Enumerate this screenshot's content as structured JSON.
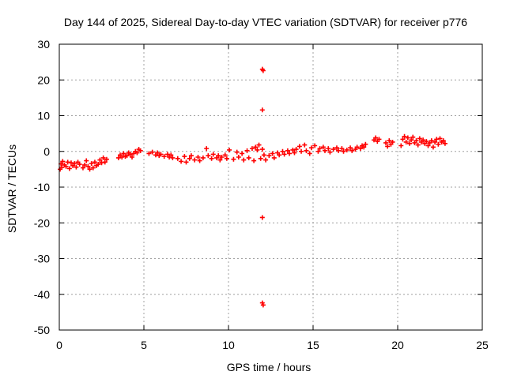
{
  "chart_data": {
    "type": "scatter",
    "title": "Day 144 of 2025, Sidereal Day-to-day VTEC variation (SDTVAR) for receiver p776",
    "xlabel": "GPS time / hours",
    "ylabel": "SDTVAR / TECUs",
    "xlim": [
      0,
      25
    ],
    "ylim": [
      -50,
      30
    ],
    "xticks": [
      0,
      5,
      10,
      15,
      20,
      25
    ],
    "yticks": [
      -50,
      -40,
      -30,
      -20,
      -10,
      0,
      10,
      20,
      30
    ],
    "grid": true,
    "marker": "+",
    "colors": {
      "series": "#ff0000",
      "grid": "#a0a0a0",
      "axes": "#000000"
    },
    "series": [
      {
        "name": "SDTVAR",
        "points": [
          [
            0.05,
            -5.0
          ],
          [
            0.1,
            -3.5
          ],
          [
            0.15,
            -4.5
          ],
          [
            0.2,
            -2.8
          ],
          [
            0.3,
            -3.8
          ],
          [
            0.4,
            -4.2
          ],
          [
            0.5,
            -3.0
          ],
          [
            0.6,
            -4.8
          ],
          [
            0.7,
            -3.2
          ],
          [
            0.8,
            -4.0
          ],
          [
            0.9,
            -3.4
          ],
          [
            1.0,
            -4.4
          ],
          [
            1.1,
            -3.0
          ],
          [
            1.2,
            -3.6
          ],
          [
            1.4,
            -4.6
          ],
          [
            1.5,
            -3.8
          ],
          [
            1.6,
            -2.6
          ],
          [
            1.7,
            -4.2
          ],
          [
            1.8,
            -5.0
          ],
          [
            1.9,
            -3.4
          ],
          [
            2.0,
            -4.6
          ],
          [
            2.1,
            -3.0
          ],
          [
            2.2,
            -4.0
          ],
          [
            2.3,
            -3.6
          ],
          [
            2.4,
            -2.4
          ],
          [
            2.5,
            -3.2
          ],
          [
            2.6,
            -1.8
          ],
          [
            2.7,
            -3.0
          ],
          [
            2.8,
            -2.2
          ],
          [
            3.5,
            -1.8
          ],
          [
            3.6,
            -1.0
          ],
          [
            3.7,
            -1.6
          ],
          [
            3.8,
            -0.6
          ],
          [
            3.9,
            -1.4
          ],
          [
            4.0,
            -1.2
          ],
          [
            4.1,
            -0.4
          ],
          [
            4.2,
            -0.8
          ],
          [
            4.3,
            -1.6
          ],
          [
            4.4,
            -0.6
          ],
          [
            4.5,
            0.0
          ],
          [
            4.6,
            -0.4
          ],
          [
            4.7,
            0.6
          ],
          [
            4.8,
            0.2
          ],
          [
            5.3,
            -0.6
          ],
          [
            5.5,
            -0.2
          ],
          [
            5.7,
            -1.0
          ],
          [
            5.8,
            -0.4
          ],
          [
            5.9,
            -1.2
          ],
          [
            6.0,
            -0.8
          ],
          [
            6.2,
            -1.4
          ],
          [
            6.4,
            -0.8
          ],
          [
            6.5,
            -1.6
          ],
          [
            6.6,
            -1.0
          ],
          [
            6.7,
            -1.8
          ],
          [
            7.0,
            -2.0
          ],
          [
            7.2,
            -2.8
          ],
          [
            7.4,
            -1.4
          ],
          [
            7.5,
            -3.0
          ],
          [
            7.7,
            -2.0
          ],
          [
            7.8,
            -1.2
          ],
          [
            8.0,
            -2.4
          ],
          [
            8.2,
            -1.6
          ],
          [
            8.3,
            -2.6
          ],
          [
            8.5,
            -1.8
          ],
          [
            8.7,
            0.8
          ],
          [
            8.8,
            -1.2
          ],
          [
            9.0,
            -2.0
          ],
          [
            9.1,
            -0.8
          ],
          [
            9.3,
            -1.8
          ],
          [
            9.4,
            -1.2
          ],
          [
            9.5,
            -2.4
          ],
          [
            9.6,
            -1.6
          ],
          [
            9.8,
            -1.0
          ],
          [
            9.9,
            -2.0
          ],
          [
            10.05,
            0.4
          ],
          [
            10.3,
            -2.2
          ],
          [
            10.5,
            -0.2
          ],
          [
            10.6,
            -1.6
          ],
          [
            10.8,
            -0.6
          ],
          [
            10.9,
            -2.4
          ],
          [
            11.1,
            0.2
          ],
          [
            11.2,
            -1.8
          ],
          [
            11.4,
            0.8
          ],
          [
            11.5,
            -2.6
          ],
          [
            11.6,
            1.2
          ],
          [
            11.7,
            0.4
          ],
          [
            11.8,
            1.8
          ],
          [
            11.9,
            -2.0
          ],
          [
            12.0,
            0.6
          ],
          [
            12.1,
            -1.0
          ],
          [
            12.2,
            -2.4
          ],
          [
            12.4,
            -1.2
          ],
          [
            12.6,
            -0.6
          ],
          [
            12.7,
            -1.8
          ],
          [
            12.9,
            -0.4
          ],
          [
            13.0,
            -1.0
          ],
          [
            13.2,
            0.0
          ],
          [
            13.3,
            -0.8
          ],
          [
            13.5,
            0.2
          ],
          [
            13.6,
            -0.6
          ],
          [
            13.8,
            0.4
          ],
          [
            13.9,
            -0.4
          ],
          [
            14.0,
            0.6
          ],
          [
            14.2,
            1.4
          ],
          [
            14.3,
            0.0
          ],
          [
            14.5,
            1.8
          ],
          [
            14.6,
            0.2
          ],
          [
            14.8,
            -0.6
          ],
          [
            14.9,
            1.0
          ],
          [
            15.1,
            1.6
          ],
          [
            15.3,
            0.0
          ],
          [
            15.4,
            0.8
          ],
          [
            15.6,
            1.2
          ],
          [
            15.7,
            0.2
          ],
          [
            15.9,
            0.8
          ],
          [
            16.0,
            -0.2
          ],
          [
            16.2,
            0.6
          ],
          [
            16.4,
            1.0
          ],
          [
            16.5,
            0.2
          ],
          [
            16.7,
            0.8
          ],
          [
            16.8,
            0.0
          ],
          [
            17.0,
            0.4
          ],
          [
            17.2,
            1.0
          ],
          [
            17.3,
            0.2
          ],
          [
            17.5,
            0.6
          ],
          [
            17.6,
            1.2
          ],
          [
            17.8,
            0.8
          ],
          [
            17.9,
            1.6
          ],
          [
            18.0,
            1.2
          ],
          [
            18.1,
            2.0
          ],
          [
            18.6,
            3.2
          ],
          [
            18.7,
            3.8
          ],
          [
            18.8,
            2.8
          ],
          [
            18.9,
            3.4
          ],
          [
            19.3,
            2.4
          ],
          [
            19.4,
            1.4
          ],
          [
            19.5,
            3.0
          ],
          [
            19.6,
            2.0
          ],
          [
            19.7,
            2.6
          ],
          [
            20.2,
            1.6
          ],
          [
            20.3,
            3.4
          ],
          [
            20.4,
            4.2
          ],
          [
            20.5,
            2.6
          ],
          [
            20.6,
            3.8
          ],
          [
            20.7,
            2.2
          ],
          [
            20.8,
            3.2
          ],
          [
            20.9,
            4.0
          ],
          [
            21.0,
            2.4
          ],
          [
            21.1,
            3.0
          ],
          [
            21.2,
            1.8
          ],
          [
            21.3,
            3.6
          ],
          [
            21.4,
            2.6
          ],
          [
            21.5,
            3.2
          ],
          [
            21.6,
            2.2
          ],
          [
            21.7,
            2.8
          ],
          [
            21.8,
            1.6
          ],
          [
            21.9,
            2.4
          ],
          [
            22.0,
            3.0
          ],
          [
            22.1,
            1.2
          ],
          [
            22.2,
            2.6
          ],
          [
            22.3,
            3.4
          ],
          [
            22.4,
            2.0
          ],
          [
            22.5,
            3.6
          ],
          [
            22.6,
            2.6
          ],
          [
            22.7,
            3.0
          ],
          [
            22.8,
            2.2
          ],
          [
            12.0,
            23.0
          ],
          [
            12.05,
            22.6
          ],
          [
            12.0,
            11.6
          ],
          [
            12.0,
            -18.5
          ],
          [
            12.0,
            -42.4
          ],
          [
            12.05,
            -43.0
          ]
        ]
      }
    ]
  }
}
